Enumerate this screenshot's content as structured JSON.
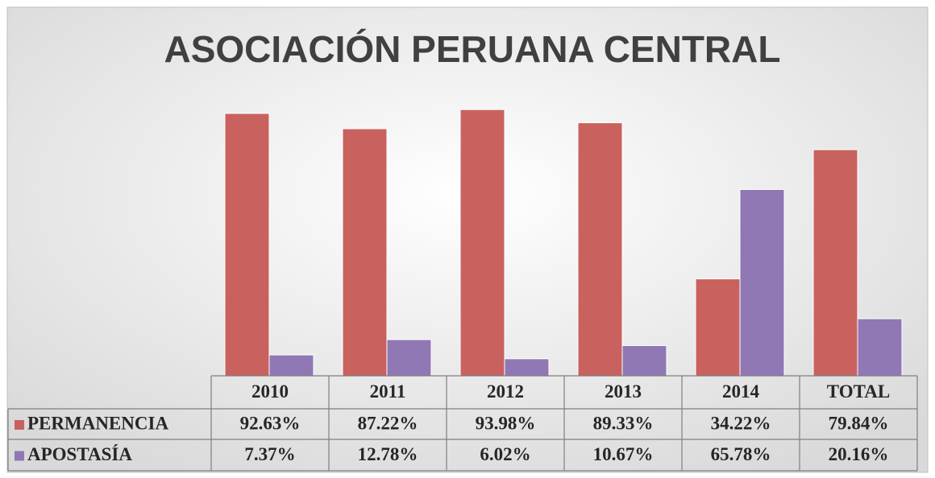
{
  "chart_data": {
    "type": "bar",
    "title": "ASOCIACIÓN PERUANA CENTRAL",
    "categories": [
      "2010",
      "2011",
      "2012",
      "2013",
      "2014",
      "TOTAL"
    ],
    "series": [
      {
        "name": "PERMANENCIA",
        "color": "#c9625f",
        "values": [
          92.63,
          87.22,
          93.98,
          89.33,
          34.22,
          79.84
        ],
        "value_labels": [
          "92.63%",
          "87.22%",
          "93.98%",
          "89.33%",
          "34.22%",
          "79.84%"
        ]
      },
      {
        "name": "APOSTASÍA",
        "color": "#8f78b4",
        "values": [
          7.37,
          12.78,
          6.02,
          10.67,
          65.78,
          20.16
        ],
        "value_labels": [
          "7.37%",
          "12.78%",
          "6.02%",
          "10.67%",
          "65.78%",
          "20.16%"
        ]
      }
    ],
    "ylim": [
      0,
      100
    ]
  }
}
